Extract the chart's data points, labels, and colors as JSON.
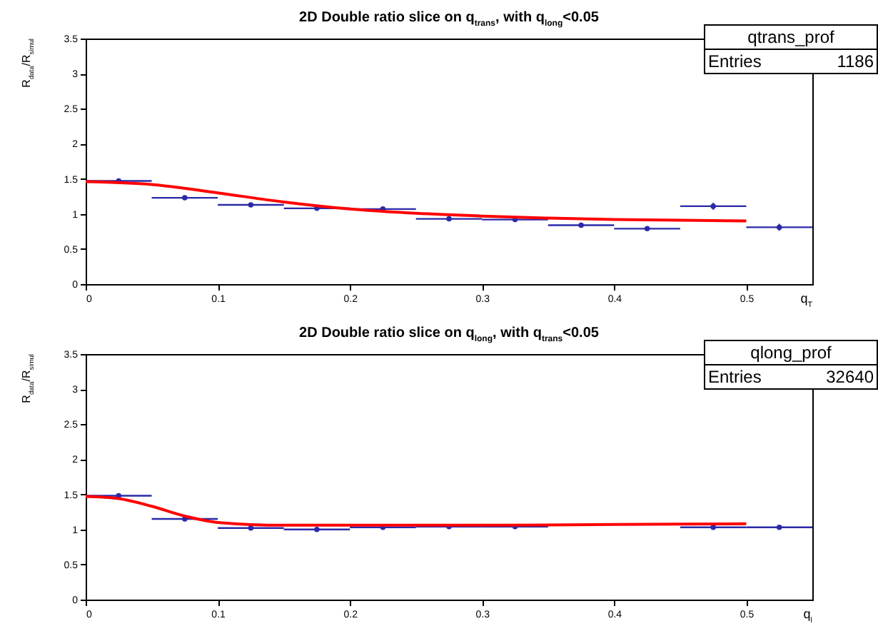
{
  "chart_data": [
    {
      "type": "scatter",
      "title": "2D Double ratio slice on q$_{trans}$, with q$_{long}$<0.05",
      "xlabel": "q$_{T}$",
      "ylabel": "R$_{data}$/R$_{simul}$",
      "annotations": [
        "qtrans_prof",
        "Entries",
        "1186"
      ],
      "xlim": [
        0,
        0.55
      ],
      "ylim": [
        0,
        3.5
      ],
      "xticks": [
        0,
        0.1,
        0.2,
        0.3,
        0.4,
        0.5
      ],
      "yticks": [
        0,
        0.5,
        1,
        1.5,
        2,
        2.5,
        3,
        3.5
      ],
      "series": [
        {
          "color": "#2a2aa8",
          "x": [
            0.025,
            0.075,
            0.125,
            0.175,
            0.225,
            0.275,
            0.325,
            0.375,
            0.425,
            0.475,
            0.525
          ],
          "values": [
            1.47,
            1.23,
            1.13,
            1.08,
            1.07,
            0.93,
            0.92,
            0.84,
            0.79,
            1.11,
            0.81
          ],
          "errors": [
            0.02,
            0.02,
            0.02,
            0.02,
            0.02,
            0.02,
            0.02,
            0.02,
            0.02,
            0.05,
            0.05
          ],
          "xerrors": [
            0.025,
            0.025,
            0.025,
            0.025,
            0.025,
            0.025,
            0.025,
            0.025,
            0.025,
            0.025,
            0.025
          ]
        },
        {
          "type": "line",
          "color": "#ff0000",
          "x": [
            0,
            0.05,
            0.1,
            0.15,
            0.2,
            0.25,
            0.3,
            0.35,
            0.4,
            0.45,
            0.5
          ],
          "values": [
            1.46,
            1.42,
            1.3,
            1.17,
            1.07,
            1.01,
            0.97,
            0.94,
            0.92,
            0.91,
            0.9
          ]
        }
      ]
    },
    {
      "type": "scatter",
      "title": "2D Double ratio slice on q$_{long}$, with q$_{trans}$<0.05",
      "xlabel": "q$_{l}$",
      "ylabel": "R$_{data}$/R$_{simul}$",
      "annotations": [
        "qlong_prof",
        "Entries",
        "32640"
      ],
      "xlim": [
        0,
        0.55
      ],
      "ylim": [
        0,
        3.5
      ],
      "xticks": [
        0,
        0.1,
        0.2,
        0.3,
        0.4,
        0.5
      ],
      "yticks": [
        0,
        0.5,
        1,
        1.5,
        2,
        2.5,
        3,
        3.5
      ],
      "series": [
        {
          "color": "#2a2aa8",
          "x": [
            0.025,
            0.075,
            0.125,
            0.175,
            0.225,
            0.275,
            0.325,
            0.375,
            0.425,
            0.475,
            0.525
          ],
          "values": [
            1.48,
            1.15,
            1.02,
            1.0,
            1.03,
            1.04,
            1.04,
            null,
            null,
            1.03,
            1.03
          ],
          "xerrors": [
            0.025,
            0.025,
            0.025,
            0.025,
            0.025,
            0.025,
            0.025,
            null,
            null,
            0.025,
            0.025
          ]
        },
        {
          "type": "line",
          "color": "#ff0000",
          "x": [
            0,
            0.025,
            0.05,
            0.075,
            0.1,
            0.15,
            0.2,
            0.3,
            0.4,
            0.5
          ],
          "values": [
            1.47,
            1.44,
            1.33,
            1.19,
            1.1,
            1.06,
            1.06,
            1.06,
            1.07,
            1.08
          ]
        }
      ]
    }
  ]
}
